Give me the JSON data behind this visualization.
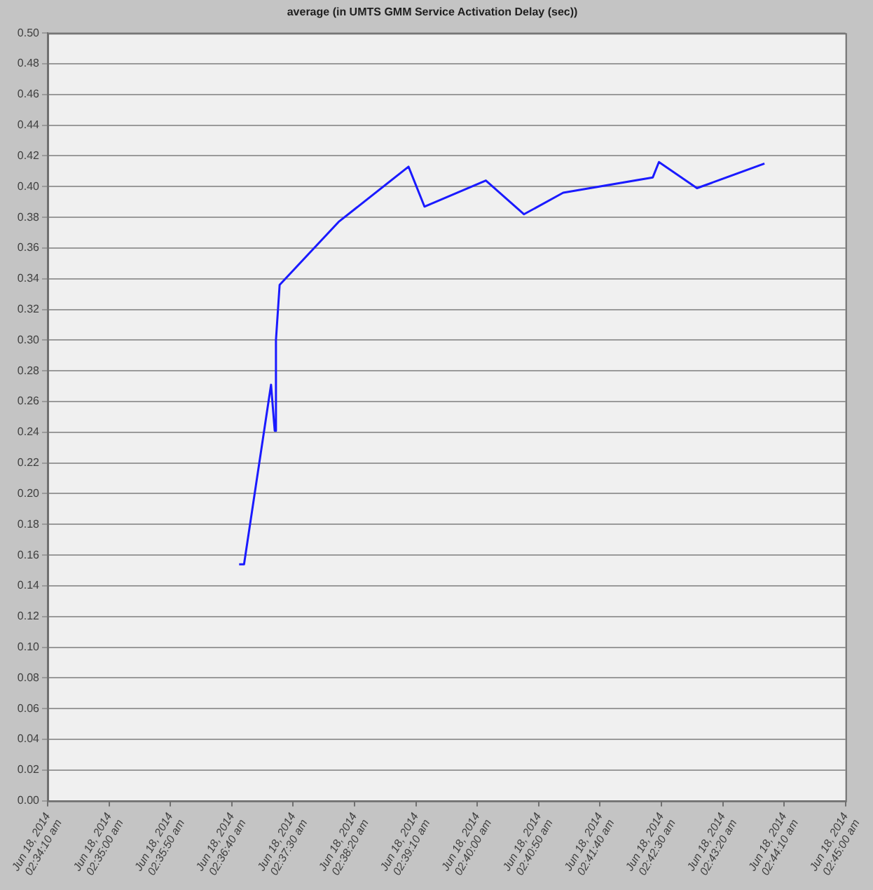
{
  "chart_data": {
    "type": "line",
    "title": "average (in UMTS GMM Service Activation Delay (sec))",
    "x": [
      "2014-06-18T02:36:46",
      "2014-06-18T02:36:50",
      "2014-06-18T02:37:12",
      "2014-06-18T02:37:15",
      "2014-06-18T02:37:16",
      "2014-06-18T02:37:19",
      "2014-06-18T02:38:07",
      "2014-06-18T02:39:04",
      "2014-06-18T02:39:17",
      "2014-06-18T02:40:07",
      "2014-06-18T02:40:38",
      "2014-06-18T02:41:10",
      "2014-06-18T02:42:23",
      "2014-06-18T02:42:28",
      "2014-06-18T02:42:59",
      "2014-06-18T02:43:54"
    ],
    "series": [
      {
        "color": "#1a1aff",
        "values": [
          0.154,
          0.154,
          0.271,
          0.241,
          0.3,
          0.336,
          0.377,
          0.413,
          0.387,
          0.404,
          0.382,
          0.396,
          0.406,
          0.416,
          0.399,
          0.415
        ]
      }
    ],
    "xlim": [
      "2014-06-18T02:34:10",
      "2014-06-18T02:45:00"
    ],
    "xticks": [
      {
        "value": "2014-06-18T02:34:10",
        "label": "Jun 18, 2014\n02:34:10 am"
      },
      {
        "value": "2014-06-18T02:35:00",
        "label": "Jun 18, 2014\n02:35:00 am"
      },
      {
        "value": "2014-06-18T02:35:50",
        "label": "Jun 18, 2014\n02:35:50 am"
      },
      {
        "value": "2014-06-18T02:36:40",
        "label": "Jun 18, 2014\n02:36:40 am"
      },
      {
        "value": "2014-06-18T02:37:30",
        "label": "Jun 18, 2014\n02:37:30 am"
      },
      {
        "value": "2014-06-18T02:38:20",
        "label": "Jun 18, 2014\n02:38:20 am"
      },
      {
        "value": "2014-06-18T02:39:10",
        "label": "Jun 18, 2014\n02:39:10 am"
      },
      {
        "value": "2014-06-18T02:40:00",
        "label": "Jun 18, 2014\n02:40:00 am"
      },
      {
        "value": "2014-06-18T02:40:50",
        "label": "Jun 18, 2014\n02:40:50 am"
      },
      {
        "value": "2014-06-18T02:41:40",
        "label": "Jun 18, 2014\n02:41:40 am"
      },
      {
        "value": "2014-06-18T02:42:30",
        "label": "Jun 18, 2014\n02:42:30 am"
      },
      {
        "value": "2014-06-18T02:43:20",
        "label": "Jun 18, 2014\n02:43:20 am"
      },
      {
        "value": "2014-06-18T02:44:10",
        "label": "Jun 18, 2014\n02:44:10 am"
      },
      {
        "value": "2014-06-18T02:45:00",
        "label": "Jun 18, 2014\n02:45:00 am"
      }
    ],
    "ylim": [
      0,
      0.5
    ],
    "yticks": [
      {
        "value": 0,
        "label": "0.00"
      },
      {
        "value": 0.02,
        "label": "0.02"
      },
      {
        "value": 0.04,
        "label": "0.04"
      },
      {
        "value": 0.06,
        "label": "0.06"
      },
      {
        "value": 0.08,
        "label": "0.08"
      },
      {
        "value": 0.1,
        "label": "0.10"
      },
      {
        "value": 0.12,
        "label": "0.12"
      },
      {
        "value": 0.14,
        "label": "0.14"
      },
      {
        "value": 0.16,
        "label": "0.16"
      },
      {
        "value": 0.18,
        "label": "0.18"
      },
      {
        "value": 0.2,
        "label": "0.20"
      },
      {
        "value": 0.22,
        "label": "0.22"
      },
      {
        "value": 0.24,
        "label": "0.24"
      },
      {
        "value": 0.26,
        "label": "0.26"
      },
      {
        "value": 0.28,
        "label": "0.28"
      },
      {
        "value": 0.3,
        "label": "0.30"
      },
      {
        "value": 0.32,
        "label": "0.32"
      },
      {
        "value": 0.34,
        "label": "0.34"
      },
      {
        "value": 0.36,
        "label": "0.36"
      },
      {
        "value": 0.38,
        "label": "0.38"
      },
      {
        "value": 0.4,
        "label": "0.40"
      },
      {
        "value": 0.42,
        "label": "0.42"
      },
      {
        "value": 0.44,
        "label": "0.44"
      },
      {
        "value": 0.46,
        "label": "0.46"
      },
      {
        "value": 0.48,
        "label": "0.48"
      },
      {
        "value": 0.5,
        "label": "0.50"
      }
    ],
    "grid": "y",
    "marker": "none",
    "line_style": "solid",
    "legend": false
  }
}
